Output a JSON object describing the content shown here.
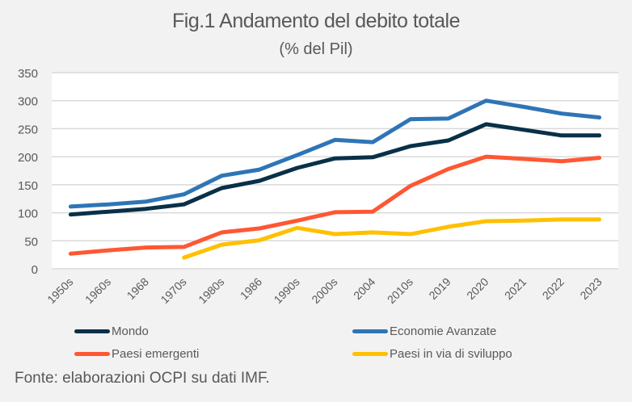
{
  "chart_data": {
    "type": "line",
    "title": "Fig.1 Andamento del debito totale",
    "subtitle": "(% del Pil)",
    "xlabel": "",
    "ylabel": "",
    "ylim": [
      0,
      350
    ],
    "yticks": [
      0,
      50,
      100,
      150,
      200,
      250,
      300,
      350
    ],
    "grid": true,
    "legend_position": "bottom",
    "categories": [
      "1950s",
      "1960s",
      "1968",
      "1970s",
      "1980s",
      "1986",
      "1990s",
      "2000s",
      "2004",
      "2010s",
      "2019",
      "2020",
      "2021",
      "2022",
      "2023"
    ],
    "series": [
      {
        "name": "Mondo",
        "color": "#0a3049",
        "values": [
          97,
          102,
          107,
          115,
          144,
          157,
          180,
          197,
          199,
          219,
          229,
          258,
          248,
          238,
          238
        ]
      },
      {
        "name": "Economie Avanzate",
        "color": "#2e75b6",
        "values": [
          111,
          115,
          120,
          133,
          166,
          177,
          203,
          230,
          226,
          267,
          268,
          300,
          289,
          277,
          270
        ]
      },
      {
        "name": "Paesi emergenti",
        "color": "#ff5733",
        "values": [
          27,
          33,
          38,
          39,
          65,
          72,
          86,
          101,
          102,
          148,
          178,
          200,
          196,
          192,
          198
        ]
      },
      {
        "name": "Paesi in via di sviluppo",
        "color": "#ffc000",
        "values": [
          null,
          null,
          null,
          20,
          43,
          51,
          73,
          62,
          65,
          62,
          75,
          85,
          86,
          88,
          88
        ]
      }
    ]
  },
  "footer": {
    "source": "Fonte: elaborazioni OCPI su dati IMF."
  }
}
